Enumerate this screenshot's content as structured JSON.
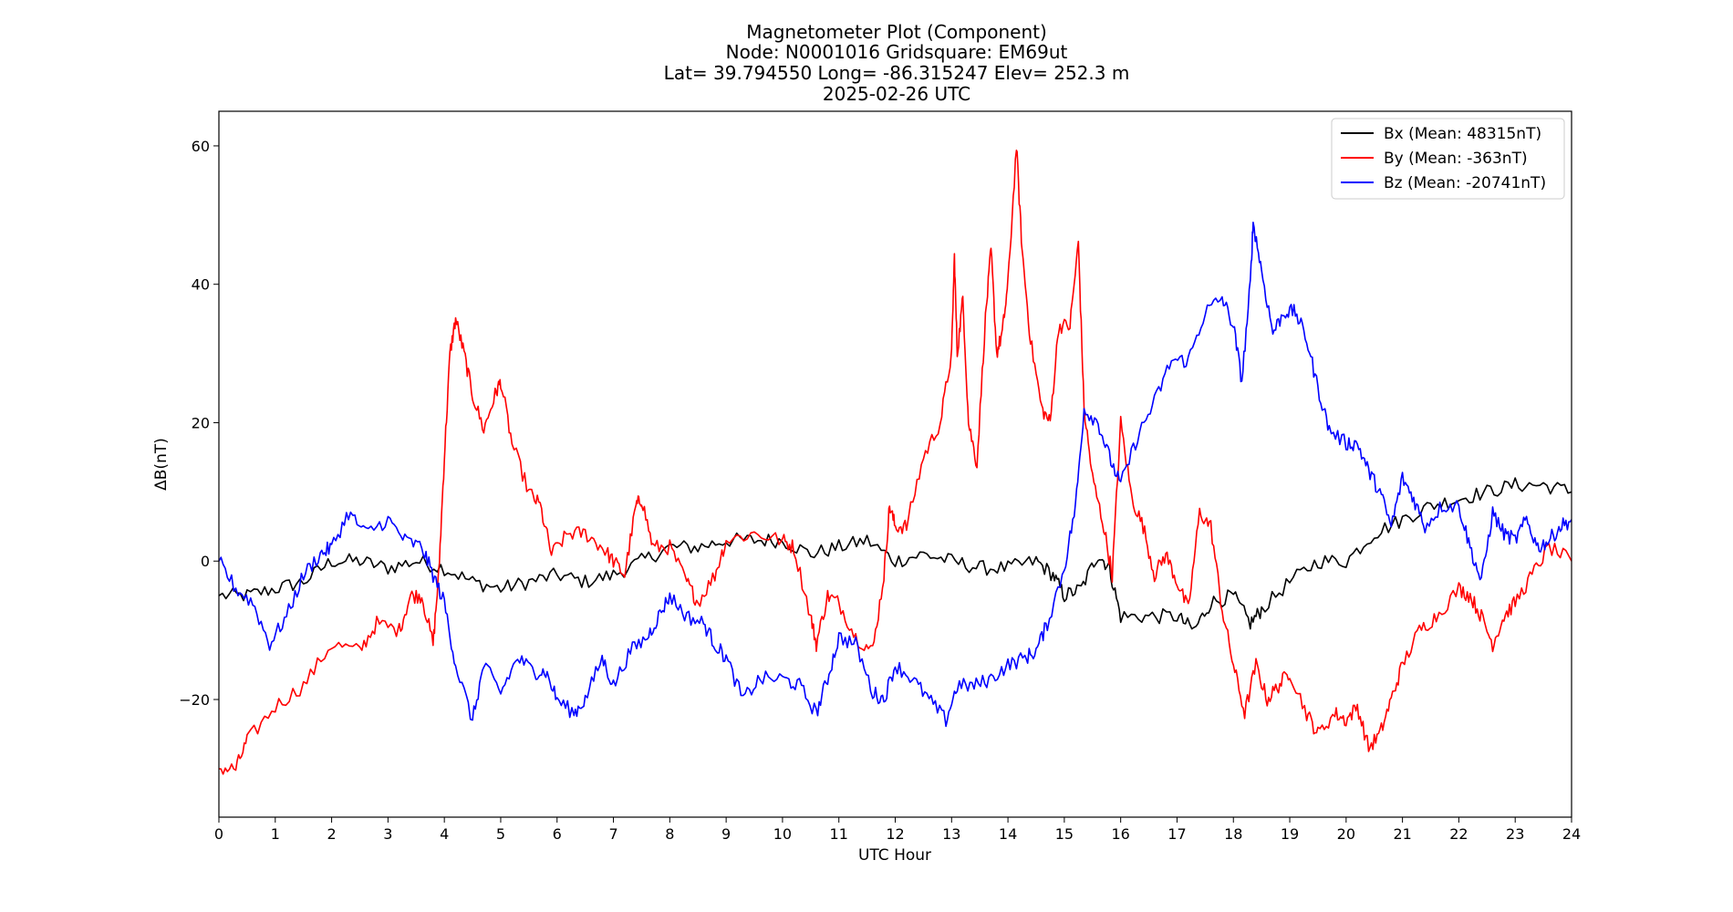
{
  "chart_data": {
    "type": "line",
    "title_lines": [
      "Magnetometer Plot (Component)",
      "Node:  N0001016     Gridsquare:  EM69ut",
      "Lat= 39.794550    Long= -86.315247    Elev= 252.3 m",
      "2025-02-26  UTC"
    ],
    "xlabel": "UTC Hour",
    "ylabel": "ΔB(nT)",
    "xlim": [
      0,
      24
    ],
    "ylim": [
      -37,
      65
    ],
    "xticks": [
      0,
      1,
      2,
      3,
      4,
      5,
      6,
      7,
      8,
      9,
      10,
      11,
      12,
      13,
      14,
      15,
      16,
      17,
      18,
      19,
      20,
      21,
      22,
      23,
      24
    ],
    "yticks": [
      -20,
      0,
      20,
      40,
      60
    ],
    "grid": false,
    "legend_position": "top-right",
    "series": [
      {
        "name": "Bx (Mean: 48315nT)",
        "color": "#000000",
        "points": [
          [
            0,
            -5
          ],
          [
            0.5,
            -5
          ],
          [
            1,
            -4
          ],
          [
            1.5,
            -3
          ],
          [
            2,
            0
          ],
          [
            2.5,
            0
          ],
          [
            3,
            -1
          ],
          [
            3.5,
            0
          ],
          [
            4,
            -1
          ],
          [
            4.5,
            -3
          ],
          [
            5,
            -4
          ],
          [
            5.5,
            -3
          ],
          [
            6,
            -2
          ],
          [
            6.5,
            -3
          ],
          [
            7,
            -2
          ],
          [
            7.5,
            0
          ],
          [
            8,
            2
          ],
          [
            8.5,
            2
          ],
          [
            9,
            3
          ],
          [
            9.5,
            3
          ],
          [
            10,
            3
          ],
          [
            10.5,
            1
          ],
          [
            11,
            2
          ],
          [
            11.5,
            3
          ],
          [
            12,
            0
          ],
          [
            12.5,
            1
          ],
          [
            13,
            0
          ],
          [
            13.5,
            -1
          ],
          [
            14,
            -1
          ],
          [
            14.5,
            0
          ],
          [
            14.8,
            -2
          ],
          [
            15,
            -5
          ],
          [
            15.3,
            -4
          ],
          [
            15.6,
            1
          ],
          [
            15.8,
            -1
          ],
          [
            16,
            -8
          ],
          [
            16.5,
            -8
          ],
          [
            17,
            -8
          ],
          [
            17.3,
            -10
          ],
          [
            17.6,
            -6
          ],
          [
            18,
            -5
          ],
          [
            18.3,
            -9
          ],
          [
            18.5,
            -7
          ],
          [
            19,
            -3
          ],
          [
            19.5,
            0
          ],
          [
            20,
            0
          ],
          [
            20.5,
            4
          ],
          [
            21,
            6
          ],
          [
            21.5,
            8
          ],
          [
            22,
            9
          ],
          [
            22.5,
            10
          ],
          [
            23,
            11
          ],
          [
            23.5,
            11
          ],
          [
            24,
            10
          ]
        ]
      },
      {
        "name": "By (Mean: -363nT)",
        "color": "#ff0000",
        "points": [
          [
            0,
            -30
          ],
          [
            0.3,
            -30
          ],
          [
            0.5,
            -26
          ],
          [
            1,
            -21
          ],
          [
            1.5,
            -18
          ],
          [
            2,
            -12
          ],
          [
            2.5,
            -13
          ],
          [
            2.8,
            -9
          ],
          [
            3.2,
            -10
          ],
          [
            3.4,
            -5
          ],
          [
            3.6,
            -5
          ],
          [
            3.8,
            -12
          ],
          [
            3.9,
            -2
          ],
          [
            4,
            15
          ],
          [
            4.1,
            30
          ],
          [
            4.2,
            35
          ],
          [
            4.35,
            30
          ],
          [
            4.5,
            24
          ],
          [
            4.7,
            19
          ],
          [
            4.9,
            24
          ],
          [
            5,
            26
          ],
          [
            5.2,
            17
          ],
          [
            5.5,
            10
          ],
          [
            5.7,
            8
          ],
          [
            5.9,
            1
          ],
          [
            6.2,
            4
          ],
          [
            6.5,
            4
          ],
          [
            6.8,
            2
          ],
          [
            7,
            0
          ],
          [
            7.2,
            -2
          ],
          [
            7.4,
            8
          ],
          [
            7.5,
            9
          ],
          [
            7.7,
            2
          ],
          [
            8,
            2
          ],
          [
            8.3,
            -3
          ],
          [
            8.5,
            -6
          ],
          [
            8.8,
            -2
          ],
          [
            9,
            3
          ],
          [
            9.5,
            4
          ],
          [
            10,
            3
          ],
          [
            10.2,
            2
          ],
          [
            10.5,
            -8
          ],
          [
            10.6,
            -12
          ],
          [
            10.8,
            -5
          ],
          [
            11,
            -6
          ],
          [
            11.3,
            -11
          ],
          [
            11.6,
            -13
          ],
          [
            11.8,
            -2
          ],
          [
            11.9,
            8
          ],
          [
            12,
            5
          ],
          [
            12.2,
            5
          ],
          [
            12.5,
            15
          ],
          [
            12.8,
            20
          ],
          [
            13,
            30
          ],
          [
            13.05,
            44
          ],
          [
            13.1,
            30
          ],
          [
            13.2,
            38
          ],
          [
            13.3,
            20
          ],
          [
            13.45,
            14
          ],
          [
            13.6,
            35
          ],
          [
            13.7,
            45
          ],
          [
            13.8,
            30
          ],
          [
            13.9,
            33
          ],
          [
            14,
            40
          ],
          [
            14.15,
            60
          ],
          [
            14.25,
            45
          ],
          [
            14.4,
            32
          ],
          [
            14.6,
            22
          ],
          [
            14.75,
            20
          ],
          [
            14.9,
            34
          ],
          [
            15.1,
            34
          ],
          [
            15.25,
            46
          ],
          [
            15.35,
            22
          ],
          [
            15.5,
            12
          ],
          [
            15.7,
            5
          ],
          [
            15.85,
            -2
          ],
          [
            16,
            20
          ],
          [
            16.2,
            9
          ],
          [
            16.4,
            5
          ],
          [
            16.6,
            -2
          ],
          [
            16.8,
            1
          ],
          [
            17,
            -3
          ],
          [
            17.2,
            -7
          ],
          [
            17.4,
            7
          ],
          [
            17.6,
            5
          ],
          [
            17.8,
            -7
          ],
          [
            18,
            -15
          ],
          [
            18.2,
            -22
          ],
          [
            18.4,
            -15
          ],
          [
            18.6,
            -20
          ],
          [
            18.8,
            -18
          ],
          [
            19,
            -16
          ],
          [
            19.3,
            -22
          ],
          [
            19.5,
            -25
          ],
          [
            19.8,
            -22
          ],
          [
            20,
            -23
          ],
          [
            20.2,
            -21
          ],
          [
            20.4,
            -27
          ],
          [
            20.6,
            -25
          ],
          [
            20.8,
            -20
          ],
          [
            21,
            -15
          ],
          [
            21.3,
            -10
          ],
          [
            21.6,
            -8
          ],
          [
            22,
            -4
          ],
          [
            22.2,
            -5
          ],
          [
            22.4,
            -8
          ],
          [
            22.6,
            -12
          ],
          [
            22.8,
            -8
          ],
          [
            23,
            -6
          ],
          [
            23.3,
            -2
          ],
          [
            23.6,
            2
          ],
          [
            24,
            0
          ]
        ]
      },
      {
        "name": "Bz (Mean: -20741nT)",
        "color": "#0000ff",
        "points": [
          [
            0,
            0
          ],
          [
            0.3,
            -4
          ],
          [
            0.6,
            -6
          ],
          [
            0.9,
            -12
          ],
          [
            1.2,
            -8
          ],
          [
            1.5,
            -2
          ],
          [
            1.8,
            1
          ],
          [
            2,
            2
          ],
          [
            2.3,
            7
          ],
          [
            2.6,
            4
          ],
          [
            3,
            6
          ],
          [
            3.3,
            3
          ],
          [
            3.6,
            2
          ],
          [
            3.8,
            -2
          ],
          [
            4,
            -6
          ],
          [
            4.2,
            -15
          ],
          [
            4.5,
            -23
          ],
          [
            4.7,
            -15
          ],
          [
            5,
            -19
          ],
          [
            5.3,
            -14
          ],
          [
            5.6,
            -16
          ],
          [
            5.8,
            -16
          ],
          [
            6,
            -20
          ],
          [
            6.3,
            -22
          ],
          [
            6.5,
            -20
          ],
          [
            6.8,
            -14
          ],
          [
            7,
            -18
          ],
          [
            7.3,
            -13
          ],
          [
            7.6,
            -11
          ],
          [
            7.8,
            -8
          ],
          [
            8,
            -5
          ],
          [
            8.3,
            -8
          ],
          [
            8.6,
            -9
          ],
          [
            8.8,
            -12
          ],
          [
            9,
            -14
          ],
          [
            9.3,
            -20
          ],
          [
            9.6,
            -17
          ],
          [
            10,
            -17
          ],
          [
            10.3,
            -18
          ],
          [
            10.6,
            -22
          ],
          [
            10.8,
            -17
          ],
          [
            11,
            -11
          ],
          [
            11.3,
            -12
          ],
          [
            11.6,
            -19
          ],
          [
            11.8,
            -20
          ],
          [
            12,
            -15
          ],
          [
            12.3,
            -17
          ],
          [
            12.6,
            -20
          ],
          [
            12.9,
            -23
          ],
          [
            13.1,
            -18
          ],
          [
            13.4,
            -18
          ],
          [
            13.7,
            -17
          ],
          [
            14,
            -15
          ],
          [
            14.3,
            -14
          ],
          [
            14.5,
            -13
          ],
          [
            14.7,
            -9
          ],
          [
            15,
            -1
          ],
          [
            15.2,
            8
          ],
          [
            15.35,
            22
          ],
          [
            15.6,
            20
          ],
          [
            15.8,
            15
          ],
          [
            16,
            11
          ],
          [
            16.3,
            18
          ],
          [
            16.6,
            23
          ],
          [
            16.9,
            29
          ],
          [
            17.2,
            29
          ],
          [
            17.5,
            36
          ],
          [
            17.8,
            38
          ],
          [
            18,
            34
          ],
          [
            18.15,
            26
          ],
          [
            18.3,
            40
          ],
          [
            18.35,
            49
          ],
          [
            18.5,
            42
          ],
          [
            18.7,
            33
          ],
          [
            18.9,
            36
          ],
          [
            19.1,
            36
          ],
          [
            19.3,
            32
          ],
          [
            19.5,
            25
          ],
          [
            19.7,
            19
          ],
          [
            20,
            17
          ],
          [
            20.2,
            17
          ],
          [
            20.4,
            13
          ],
          [
            20.6,
            10
          ],
          [
            20.8,
            5
          ],
          [
            21,
            12
          ],
          [
            21.2,
            9
          ],
          [
            21.4,
            5
          ],
          [
            21.7,
            8
          ],
          [
            22,
            8
          ],
          [
            22.2,
            2
          ],
          [
            22.4,
            -3
          ],
          [
            22.6,
            7
          ],
          [
            22.8,
            4
          ],
          [
            23,
            3
          ],
          [
            23.2,
            6
          ],
          [
            23.4,
            2
          ],
          [
            23.6,
            3
          ],
          [
            23.8,
            5
          ],
          [
            24,
            6
          ]
        ]
      }
    ]
  }
}
